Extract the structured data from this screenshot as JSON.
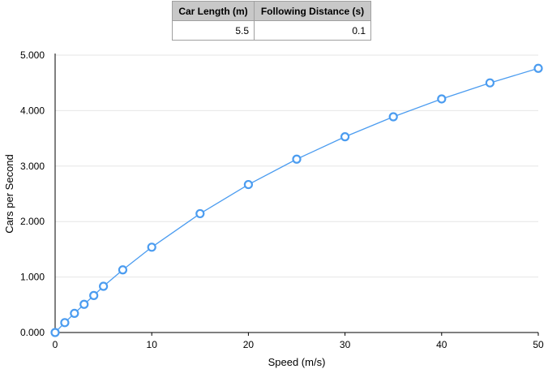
{
  "table": {
    "headers": [
      "Car Length (m)",
      "Following Distance (s)"
    ],
    "values": [
      "5.5",
      "0.1"
    ]
  },
  "chart_data": {
    "type": "scatter",
    "title": "",
    "xlabel": "Speed (m/s)",
    "ylabel": "Cars per Second",
    "xlim": [
      0,
      50
    ],
    "ylim": [
      0,
      5
    ],
    "x_ticks": [
      "0",
      "10",
      "20",
      "30",
      "40",
      "50"
    ],
    "y_ticks": [
      "0.000",
      "1.000",
      "2.000",
      "3.000",
      "4.000",
      "5.000"
    ],
    "grid": true,
    "line": true,
    "series": [
      {
        "x": [
          0,
          1,
          2,
          3,
          4,
          5,
          7,
          10,
          15,
          20,
          25,
          30,
          35,
          40,
          45,
          50
        ],
        "y": [
          0,
          0.178,
          0.345,
          0.508,
          0.667,
          0.833,
          1.129,
          1.538,
          2.143,
          2.667,
          3.125,
          3.529,
          3.889,
          4.211,
          4.5,
          4.762
        ]
      }
    ],
    "colors": {
      "series": "#4b9cf0",
      "marker_fill": "#ffffff",
      "grid": "#e6e6e6",
      "axis": "#000000"
    }
  }
}
